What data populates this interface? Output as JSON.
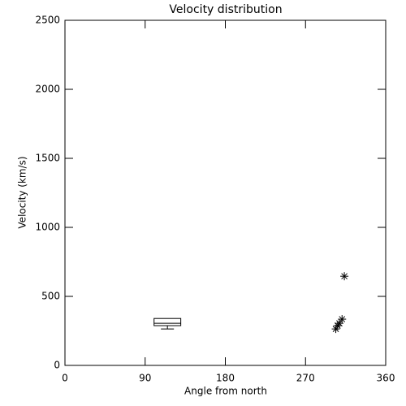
{
  "chart_data": {
    "type": "box",
    "title": "Velocity distribution",
    "x_label": "Angle from north",
    "y_label": "Velocity (km/s)",
    "xlim": [
      0,
      360
    ],
    "xticks": [
      0,
      90,
      180,
      270,
      360
    ],
    "ylim": [
      0,
      2500
    ],
    "yticks": [
      0,
      500,
      1000,
      1500,
      2000,
      2500
    ],
    "color": "#000000",
    "box": {
      "x_low": 100,
      "x_high": 130,
      "whisker_low": 264,
      "q1": 288,
      "median": 305,
      "q3": 340
    },
    "points": {
      "type": "scatter",
      "x": [
        313.6,
        311,
        308,
        306,
        304
      ],
      "y": [
        646,
        335,
        305,
        288,
        264
      ]
    }
  }
}
